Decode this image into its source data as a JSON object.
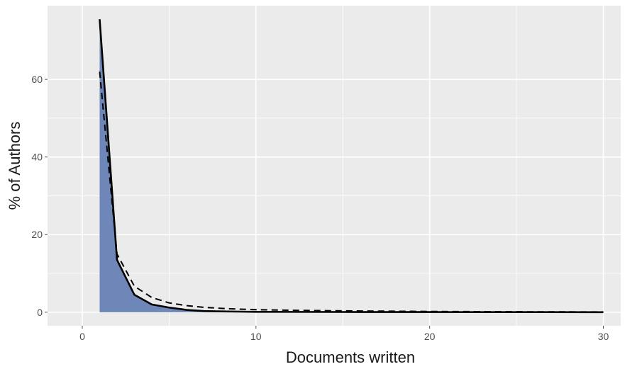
{
  "chart_data": {
    "type": "area",
    "xlabel": "Documents written",
    "ylabel": "% of Authors",
    "xlim": [
      -2,
      31
    ],
    "ylim": [
      -3.5,
      79
    ],
    "x_ticks": [
      0,
      10,
      20,
      30
    ],
    "y_ticks": [
      0,
      20,
      40,
      60
    ],
    "grid": true,
    "colors": {
      "panel": "#ebebeb",
      "grid": "#ffffff",
      "fill": "#6f86b8",
      "line": "#000000"
    },
    "series": [
      {
        "style": "solid-with-fill",
        "x": [
          1,
          2,
          3,
          4,
          5,
          6,
          7,
          8,
          9,
          10,
          12,
          15,
          20,
          25,
          30
        ],
        "y": [
          75.5,
          13.5,
          4.5,
          2,
          1.2,
          0.6,
          0.3,
          0.2,
          0.15,
          0.1,
          0.08,
          0.06,
          0.04,
          0.02,
          0.01
        ]
      },
      {
        "style": "dashed",
        "x": [
          1,
          2,
          3,
          4,
          5,
          6,
          7,
          8,
          9,
          10,
          12,
          15,
          20,
          25,
          30
        ],
        "y": [
          62,
          15,
          6.7,
          3.8,
          2.4,
          1.7,
          1.25,
          1.0,
          0.8,
          0.65,
          0.5,
          0.35,
          0.2,
          0.12,
          0.08
        ]
      }
    ]
  }
}
